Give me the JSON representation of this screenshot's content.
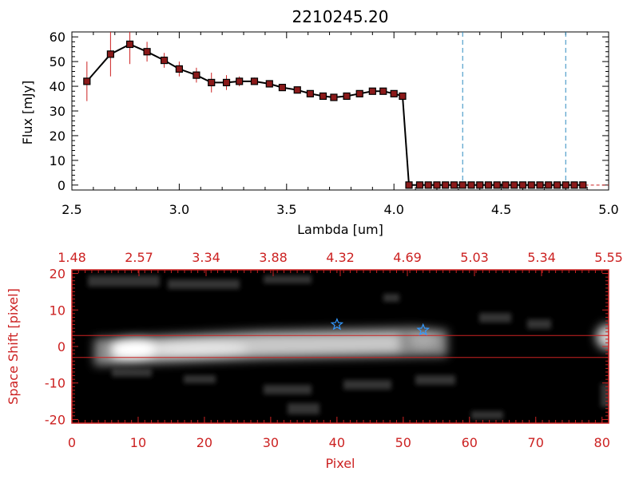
{
  "chart_data": [
    {
      "type": "line",
      "title": "2210245.20",
      "xlabel": "Lambda [um]",
      "ylabel": "Flux [mJy]",
      "xlim": [
        2.5,
        5.0
      ],
      "ylim": [
        -2,
        62
      ],
      "xticks": [
        "2.5",
        "3.0",
        "3.5",
        "4.0",
        "4.5",
        "5.0"
      ],
      "yticks": [
        "0",
        "10",
        "20",
        "30",
        "40",
        "50",
        "60"
      ],
      "vlines": [
        4.32,
        4.8
      ],
      "series": [
        {
          "x": [
            2.57,
            2.68,
            2.77,
            2.85,
            2.93,
            3.0,
            3.08,
            3.15,
            3.22,
            3.28,
            3.35,
            3.42,
            3.48,
            3.55,
            3.61,
            3.67,
            3.72,
            3.78,
            3.84,
            3.9,
            3.95,
            4.0,
            4.04,
            4.07,
            4.12,
            4.16,
            4.2,
            4.24,
            4.28,
            4.32,
            4.36,
            4.4,
            4.44,
            4.48,
            4.52,
            4.56,
            4.6,
            4.64,
            4.68,
            4.72,
            4.76,
            4.8,
            4.84,
            4.88
          ],
          "y": [
            42,
            53,
            57,
            54,
            50.5,
            47,
            44.5,
            41.5,
            41.5,
            42,
            42,
            41,
            39.5,
            38.5,
            37,
            36,
            35.5,
            36,
            37,
            38,
            38,
            37,
            36,
            0,
            0,
            0,
            0,
            0,
            0,
            0,
            0,
            0,
            0,
            0,
            0,
            0,
            0,
            0,
            0,
            0,
            0,
            0,
            0,
            0
          ],
          "err": [
            8,
            9,
            8,
            4,
            3,
            3,
            3,
            4,
            3,
            2,
            1.5,
            1,
            1,
            1,
            1,
            1,
            1,
            1,
            1,
            1,
            1,
            1,
            1,
            0,
            0,
            0,
            0,
            0,
            0,
            0,
            0,
            0,
            0,
            0,
            0,
            0,
            0,
            0,
            0,
            0,
            0,
            0,
            0,
            0
          ]
        }
      ],
      "colors": {
        "line": "#000000",
        "marker": "#8b1a1a",
        "errorbar": "#cc2222",
        "vline": "#2e8bc0"
      }
    },
    {
      "type": "heatmap",
      "xlabel": "Pixel",
      "ylabel": "Space Shift [pixel]",
      "xlim": [
        0,
        81
      ],
      "ylim": [
        -21,
        21
      ],
      "xticks": [
        "0",
        "10",
        "20",
        "30",
        "40",
        "50",
        "60",
        "70",
        "80"
      ],
      "yticks": [
        "-20",
        "-10",
        "0",
        "10",
        "20"
      ],
      "top_ticks": [
        "1.48",
        "2.57",
        "3.34",
        "3.88",
        "4.32",
        "4.69",
        "5.03",
        "5.34",
        "5.55"
      ],
      "hlines": [
        3,
        -3
      ],
      "stars": [
        {
          "x": 40,
          "y": 6
        },
        {
          "x": 53,
          "y": 4.5
        }
      ],
      "colors": {
        "axes": "#cc2222",
        "star": "#3399ff",
        "background": "#000000"
      }
    }
  ]
}
